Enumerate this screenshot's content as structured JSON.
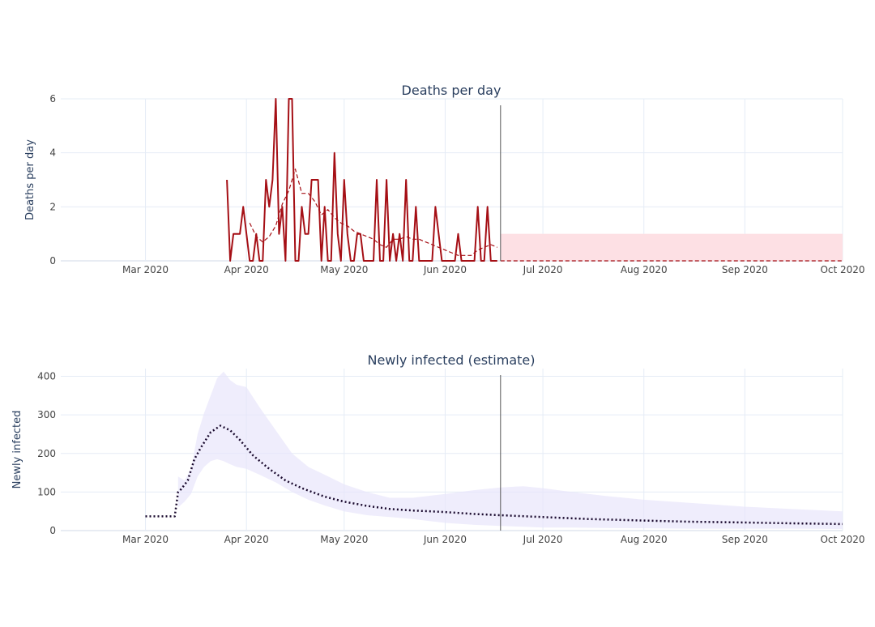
{
  "chart_data": [
    {
      "type": "line",
      "title": "Deaths per day",
      "ylabel": "Deaths per day",
      "xlabel": "",
      "xlim": [
        "2020-02-04",
        "2020-10-01"
      ],
      "ylim": [
        0,
        6
      ],
      "yticks": [
        0,
        2,
        4,
        6
      ],
      "xticks": [
        {
          "date": "2020-03-01",
          "label": "Mar 2020"
        },
        {
          "date": "2020-04-01",
          "label": "Apr 2020"
        },
        {
          "date": "2020-05-01",
          "label": "May 2020"
        },
        {
          "date": "2020-06-01",
          "label": "Jun 2020"
        },
        {
          "date": "2020-07-01",
          "label": "Jul 2020"
        },
        {
          "date": "2020-08-01",
          "label": "Aug 2020"
        },
        {
          "date": "2020-09-01",
          "label": "Sep 2020"
        },
        {
          "date": "2020-10-01",
          "label": "Oct 2020"
        }
      ],
      "grid": true,
      "today_line": "2020-06-18",
      "series": [
        {
          "style": "solid",
          "color": "#a50f15",
          "x": [
            "2020-03-26",
            "2020-03-27",
            "2020-03-28",
            "2020-03-29",
            "2020-03-30",
            "2020-03-31",
            "2020-04-01",
            "2020-04-02",
            "2020-04-03",
            "2020-04-04",
            "2020-04-05",
            "2020-04-06",
            "2020-04-07",
            "2020-04-08",
            "2020-04-09",
            "2020-04-10",
            "2020-04-11",
            "2020-04-12",
            "2020-04-13",
            "2020-04-14",
            "2020-04-15",
            "2020-04-16",
            "2020-04-17",
            "2020-04-18",
            "2020-04-19",
            "2020-04-20",
            "2020-04-21",
            "2020-04-22",
            "2020-04-23",
            "2020-04-24",
            "2020-04-25",
            "2020-04-26",
            "2020-04-27",
            "2020-04-28",
            "2020-04-29",
            "2020-04-30",
            "2020-05-01",
            "2020-05-02",
            "2020-05-03",
            "2020-05-04",
            "2020-05-05",
            "2020-05-06",
            "2020-05-07",
            "2020-05-08",
            "2020-05-09",
            "2020-05-10",
            "2020-05-11",
            "2020-05-12",
            "2020-05-13",
            "2020-05-14",
            "2020-05-15",
            "2020-05-16",
            "2020-05-17",
            "2020-05-18",
            "2020-05-19",
            "2020-05-20",
            "2020-05-21",
            "2020-05-22",
            "2020-05-23",
            "2020-05-24",
            "2020-05-25",
            "2020-05-26",
            "2020-05-27",
            "2020-05-28",
            "2020-05-29",
            "2020-05-30",
            "2020-05-31",
            "2020-06-01",
            "2020-06-02",
            "2020-06-03",
            "2020-06-04",
            "2020-06-05",
            "2020-06-06",
            "2020-06-07",
            "2020-06-08",
            "2020-06-09",
            "2020-06-10",
            "2020-06-11",
            "2020-06-12",
            "2020-06-13",
            "2020-06-14",
            "2020-06-15",
            "2020-06-16",
            "2020-06-17"
          ],
          "y": [
            3,
            0,
            1,
            1,
            1,
            2,
            1,
            0,
            0,
            1,
            0,
            0,
            3,
            2,
            3,
            6,
            1,
            2,
            0,
            6,
            6,
            0,
            0,
            2,
            1,
            1,
            3,
            3,
            3,
            0,
            2,
            0,
            0,
            4,
            1,
            0,
            3,
            1,
            0,
            0,
            1,
            1,
            0,
            0,
            0,
            0,
            3,
            0,
            0,
            3,
            0,
            1,
            0,
            1,
            0,
            3,
            0,
            0,
            2,
            0,
            0,
            0,
            0,
            0,
            2,
            1,
            0,
            0,
            0,
            0,
            0,
            1,
            0,
            0,
            0,
            0,
            0,
            2,
            0,
            0,
            2,
            0,
            0,
            0
          ]
        },
        {
          "style": "dashed",
          "color": "#a50f15",
          "x": [
            "2020-04-02",
            "2020-04-04",
            "2020-04-06",
            "2020-04-08",
            "2020-04-10",
            "2020-04-12",
            "2020-04-14",
            "2020-04-16",
            "2020-04-18",
            "2020-04-20",
            "2020-04-22",
            "2020-04-24",
            "2020-04-26",
            "2020-04-28",
            "2020-04-30",
            "2020-05-02",
            "2020-05-04",
            "2020-05-06",
            "2020-05-08",
            "2020-05-10",
            "2020-05-12",
            "2020-05-14",
            "2020-05-16",
            "2020-05-18",
            "2020-05-20",
            "2020-05-22",
            "2020-05-24",
            "2020-05-26",
            "2020-05-28",
            "2020-05-30",
            "2020-06-01",
            "2020-06-03",
            "2020-06-05",
            "2020-06-07",
            "2020-06-09",
            "2020-06-11",
            "2020-06-13",
            "2020-06-15",
            "2020-06-17"
          ],
          "y": [
            1.4,
            0.9,
            0.7,
            0.9,
            1.3,
            2.1,
            2.6,
            3.4,
            2.5,
            2.5,
            2.2,
            1.7,
            1.9,
            1.6,
            1.4,
            1.3,
            1.1,
            1.0,
            0.9,
            0.8,
            0.6,
            0.5,
            0.8,
            0.8,
            0.9,
            0.8,
            0.8,
            0.7,
            0.6,
            0.5,
            0.4,
            0.3,
            0.2,
            0.2,
            0.2,
            0.4,
            0.5,
            0.6,
            0.5
          ]
        },
        {
          "style": "dashed",
          "color": "#a50f15",
          "x": [
            "2020-06-18",
            "2020-10-01"
          ],
          "y": [
            0,
            0
          ]
        }
      ],
      "band": {
        "x0": "2020-06-18",
        "x1": "2020-10-01",
        "y0": 0,
        "y1": 1,
        "color": "#fde0e4"
      }
    },
    {
      "type": "line",
      "title": "Newly infected (estimate)",
      "ylabel": "Newly infected",
      "xlabel": "",
      "xlim": [
        "2020-02-04",
        "2020-10-01"
      ],
      "ylim": [
        0,
        420
      ],
      "yticks": [
        0,
        100,
        200,
        300,
        400
      ],
      "xticks": [
        {
          "date": "2020-03-01",
          "label": "Mar 2020"
        },
        {
          "date": "2020-04-01",
          "label": "Apr 2020"
        },
        {
          "date": "2020-05-01",
          "label": "May 2020"
        },
        {
          "date": "2020-06-01",
          "label": "Jun 2020"
        },
        {
          "date": "2020-07-01",
          "label": "Jul 2020"
        },
        {
          "date": "2020-08-01",
          "label": "Aug 2020"
        },
        {
          "date": "2020-09-01",
          "label": "Sep 2020"
        },
        {
          "date": "2020-10-01",
          "label": "Oct 2020"
        }
      ],
      "grid": true,
      "today_line": "2020-06-18",
      "series": [
        {
          "style": "dotted",
          "color": "#1a0a2e",
          "x": [
            "2020-03-01",
            "2020-03-10",
            "2020-03-11",
            "2020-03-12",
            "2020-03-14",
            "2020-03-16",
            "2020-03-18",
            "2020-03-21",
            "2020-03-24",
            "2020-03-27",
            "2020-03-30",
            "2020-04-03",
            "2020-04-08",
            "2020-04-13",
            "2020-04-18",
            "2020-04-25",
            "2020-05-01",
            "2020-05-08",
            "2020-05-15",
            "2020-05-22",
            "2020-06-01",
            "2020-06-10",
            "2020-06-18",
            "2020-07-01",
            "2020-07-15",
            "2020-08-01",
            "2020-08-15",
            "2020-09-01",
            "2020-09-15",
            "2020-10-01"
          ],
          "y": [
            37,
            37,
            100,
            108,
            130,
            185,
            215,
            255,
            272,
            260,
            235,
            195,
            160,
            130,
            110,
            88,
            75,
            64,
            56,
            52,
            48,
            43,
            40,
            35,
            30,
            26,
            23,
            21,
            19,
            17
          ]
        }
      ],
      "band": {
        "color": "#e8e6fb",
        "x": [
          "2020-03-11",
          "2020-03-13",
          "2020-03-15",
          "2020-03-17",
          "2020-03-19",
          "2020-03-21",
          "2020-03-23",
          "2020-03-25",
          "2020-03-27",
          "2020-03-29",
          "2020-04-01",
          "2020-04-05",
          "2020-04-10",
          "2020-04-15",
          "2020-04-20",
          "2020-04-25",
          "2020-05-01",
          "2020-05-08",
          "2020-05-15",
          "2020-05-22",
          "2020-06-01",
          "2020-06-10",
          "2020-06-18",
          "2020-06-25",
          "2020-07-01",
          "2020-07-10",
          "2020-07-20",
          "2020-08-01",
          "2020-08-15",
          "2020-09-01",
          "2020-09-15",
          "2020-10-01"
        ],
        "upper": [
          140,
          130,
          160,
          250,
          305,
          350,
          395,
          412,
          390,
          378,
          372,
          320,
          260,
          200,
          165,
          145,
          120,
          100,
          85,
          85,
          95,
          105,
          112,
          115,
          110,
          100,
          90,
          80,
          72,
          62,
          56,
          50
        ],
        "lower": [
          60,
          75,
          95,
          140,
          165,
          180,
          185,
          180,
          172,
          165,
          160,
          145,
          125,
          100,
          80,
          65,
          50,
          40,
          35,
          30,
          20,
          15,
          12,
          10,
          8,
          8,
          7,
          6,
          5,
          5,
          5,
          4
        ]
      }
    }
  ]
}
